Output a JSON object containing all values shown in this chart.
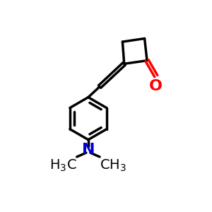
{
  "background": "#ffffff",
  "bond_color": "#000000",
  "oxygen_color": "#ff0000",
  "nitrogen_color": "#0000cd",
  "bond_width": 2.5,
  "font_size_atom": 14
}
